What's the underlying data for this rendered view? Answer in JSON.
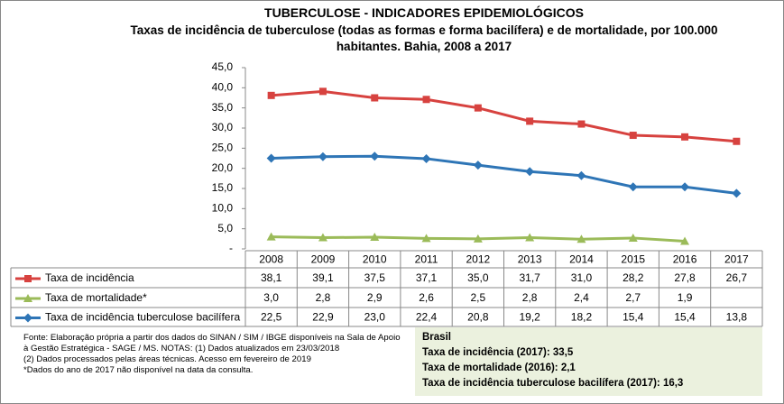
{
  "chart_data": {
    "type": "line",
    "title": "TUBERCULOSE - INDICADORES EPIDEMIOLÓGICOS",
    "subtitle": "Taxas de incidência de tuberculose (todas as formas e forma bacilífera) e de mortalidade,  por 100.000 habitantes. Bahia, 2008 a 2017",
    "categories": [
      "2008",
      "2009",
      "2010",
      "2011",
      "2012",
      "2013",
      "2014",
      "2015",
      "2016",
      "2017"
    ],
    "series": [
      {
        "name": "Taxa de incidência",
        "color": "#d7423f",
        "marker": "square",
        "values": [
          38.1,
          39.1,
          37.5,
          37.1,
          35.0,
          31.7,
          31.0,
          28.2,
          27.8,
          26.7
        ],
        "value_labels": [
          "38,1",
          "39,1",
          "37,5",
          "37,1",
          "35,0",
          "31,7",
          "31,0",
          "28,2",
          "27,8",
          "26,7"
        ]
      },
      {
        "name": "Taxa de mortalidade*",
        "color": "#9bbb59",
        "marker": "triangle",
        "values": [
          3.0,
          2.8,
          2.9,
          2.6,
          2.5,
          2.8,
          2.4,
          2.7,
          1.9,
          null
        ],
        "value_labels": [
          "3,0",
          "2,8",
          "2,9",
          "2,6",
          "2,5",
          "2,8",
          "2,4",
          "2,7",
          "1,9",
          null
        ]
      },
      {
        "name": "Taxa de incidência tuberculose bacilífera",
        "color": "#2e75b6",
        "marker": "diamond",
        "values": [
          22.5,
          22.9,
          23.0,
          22.4,
          20.8,
          19.2,
          18.2,
          15.4,
          15.4,
          13.8
        ],
        "value_labels": [
          "22,5",
          "22,9",
          "23,0",
          "22,4",
          "20,8",
          "19,2",
          "18,2",
          "15,4",
          "15,4",
          "13,8"
        ]
      }
    ],
    "ylim": [
      0,
      45
    ],
    "yticks": [
      {
        "value": 0,
        "label": "-"
      },
      {
        "value": 5,
        "label": "5,0"
      },
      {
        "value": 10,
        "label": "10,0"
      },
      {
        "value": 15,
        "label": "15,0"
      },
      {
        "value": 20,
        "label": "20,0"
      },
      {
        "value": 25,
        "label": "25,0"
      },
      {
        "value": 30,
        "label": "30,0"
      },
      {
        "value": 35,
        "label": "35,0"
      },
      {
        "value": 40,
        "label": "40,0"
      },
      {
        "value": 45,
        "label": "45,0"
      }
    ],
    "grid": false,
    "notes": [
      "Fonte: Elaboração própria a partir dos dados do SINAN / SIM / IBGE disponíveis na Sala de Apoio  à Gestão Estratégica - SAGE / MS. NOTAS: (1) Dados atualizados em 23/03/2018",
      "(2) Dados processados pelas áreas técnicas. Acesso em fevereiro de 2019",
      "*Dados do ano de 2017 não disponível na data da consulta."
    ],
    "summary_box": [
      "Brasil",
      "Taxa de incidência  (2017): 33,5",
      "Taxa de mortalidade (2016): 2,1",
      "Taxa de incidência  tuberculose bacilífera  (2017): 16,3"
    ]
  }
}
